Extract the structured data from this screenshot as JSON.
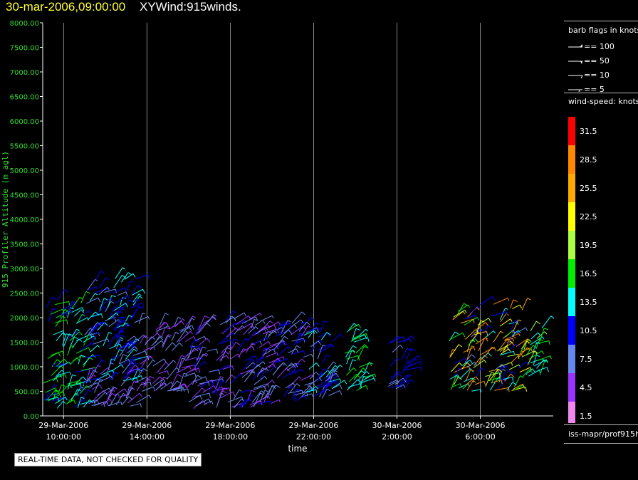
{
  "header": {
    "date": "30-mar-2006,09:00:00",
    "title": "XYWind:915winds."
  },
  "notice": "REAL-TIME DATA, NOT CHECKED FOR QUALITY",
  "legend": {
    "barb_title": "barb flags in knots",
    "barbs": [
      {
        "label": "== 100",
        "kind": "pennant"
      },
      {
        "label": "== 50",
        "kind": "flag"
      },
      {
        "label": "== 10",
        "kind": "full"
      },
      {
        "label": "== 5",
        "kind": "half"
      }
    ],
    "speed_title": "wind-speed: knots",
    "speed_bins": [
      {
        "label": "31.5",
        "color": "#ff0000"
      },
      {
        "label": "28.5",
        "color": "#ff8800"
      },
      {
        "label": "25.5",
        "color": "#ffaa00"
      },
      {
        "label": "22.5",
        "color": "#ffff00"
      },
      {
        "label": "19.5",
        "color": "#aaff44"
      },
      {
        "label": "16.5",
        "color": "#00ee00"
      },
      {
        "label": "13.5",
        "color": "#00ffff"
      },
      {
        "label": "10.5",
        "color": "#0000ff"
      },
      {
        "label": "7.5",
        "color": "#6688ee"
      },
      {
        "label": "4.5",
        "color": "#9933ff"
      },
      {
        "label": "1.5",
        "color": "#ee88ee"
      }
    ],
    "source": "iss-mapr/prof915h"
  },
  "chart_data": {
    "type": "scatter",
    "xlabel": "time",
    "ylabel": "915 Profiler Altitude (m agl)",
    "ylim": [
      0,
      8000
    ],
    "xlim": [
      "29-Mar-2006 09:00",
      "30-Mar-2006 09:30"
    ],
    "grid": "vertical lines at x tick marks",
    "y_ticks": [
      "0.00",
      "500.00",
      "1000.00",
      "1500.00",
      "2000.00",
      "2500.00",
      "3000.00",
      "3500.00",
      "4000.00",
      "4500.00",
      "5000.00",
      "5500.00",
      "6000.00",
      "6500.00",
      "7000.00",
      "7500.00",
      "8000.00"
    ],
    "x_ticks": [
      {
        "date": "29-Mar-2006",
        "time": "10:00:00"
      },
      {
        "date": "29-Mar-2006",
        "time": "14:00:00"
      },
      {
        "date": "29-Mar-2006",
        "time": "18:00:00"
      },
      {
        "date": "29-Mar-2006",
        "time": "22:00:00"
      },
      {
        "date": "30-Mar-2006",
        "time": "2:00:00"
      },
      {
        "date": "30-Mar-2006",
        "time": "6:00:00"
      }
    ],
    "barb_clusters": [
      {
        "x": [
          "29-Mar-2006 09:00",
          "29-Mar-2006 11:00"
        ],
        "altitude": [
          150,
          2400
        ],
        "speed_knots": [
          10,
          18
        ]
      },
      {
        "x": [
          "29-Mar-2006 11:00",
          "29-Mar-2006 13:30"
        ],
        "altitude": [
          700,
          2900
        ],
        "speed_knots": [
          8,
          14
        ]
      },
      {
        "x": [
          "29-Mar-2006 11:00",
          "29-Mar-2006 13:30"
        ],
        "altitude": [
          200,
          900
        ],
        "speed_knots": [
          3,
          8
        ]
      },
      {
        "x": [
          "29-Mar-2006 13:30",
          "29-Mar-2006 16:00"
        ],
        "altitude": [
          500,
          1900
        ],
        "speed_knots": [
          4,
          9
        ]
      },
      {
        "x": [
          "29-Mar-2006 16:00",
          "29-Mar-2006 20:00"
        ],
        "altitude": [
          150,
          2000
        ],
        "speed_knots": [
          3,
          11
        ]
      },
      {
        "x": [
          "29-Mar-2006 20:00",
          "29-Mar-2006 21:30"
        ],
        "altitude": [
          300,
          1900
        ],
        "speed_knots": [
          5,
          12
        ]
      },
      {
        "x": [
          "29-Mar-2006 21:30",
          "29-Mar-2006 23:00"
        ],
        "altitude": [
          350,
          1800
        ],
        "speed_knots": [
          7,
          14
        ]
      },
      {
        "x": [
          "29-Mar-2006 23:30",
          "30-Mar-2006 00:30"
        ],
        "altitude": [
          500,
          1800
        ],
        "speed_knots": [
          12,
          17
        ]
      },
      {
        "x": [
          "30-Mar-2006 01:30",
          "30-Mar-2006 02:30"
        ],
        "altitude": [
          500,
          1500
        ],
        "speed_knots": [
          8,
          12
        ]
      },
      {
        "x": [
          "30-Mar-2006 04:30",
          "30-Mar-2006 08:00"
        ],
        "altitude": [
          500,
          2300
        ],
        "speed_knots": [
          8,
          30
        ]
      },
      {
        "x": [
          "30-Mar-2006 08:00",
          "30-Mar-2006 09:00"
        ],
        "altitude": [
          800,
          1800
        ],
        "speed_knots": [
          12,
          20
        ]
      }
    ]
  }
}
